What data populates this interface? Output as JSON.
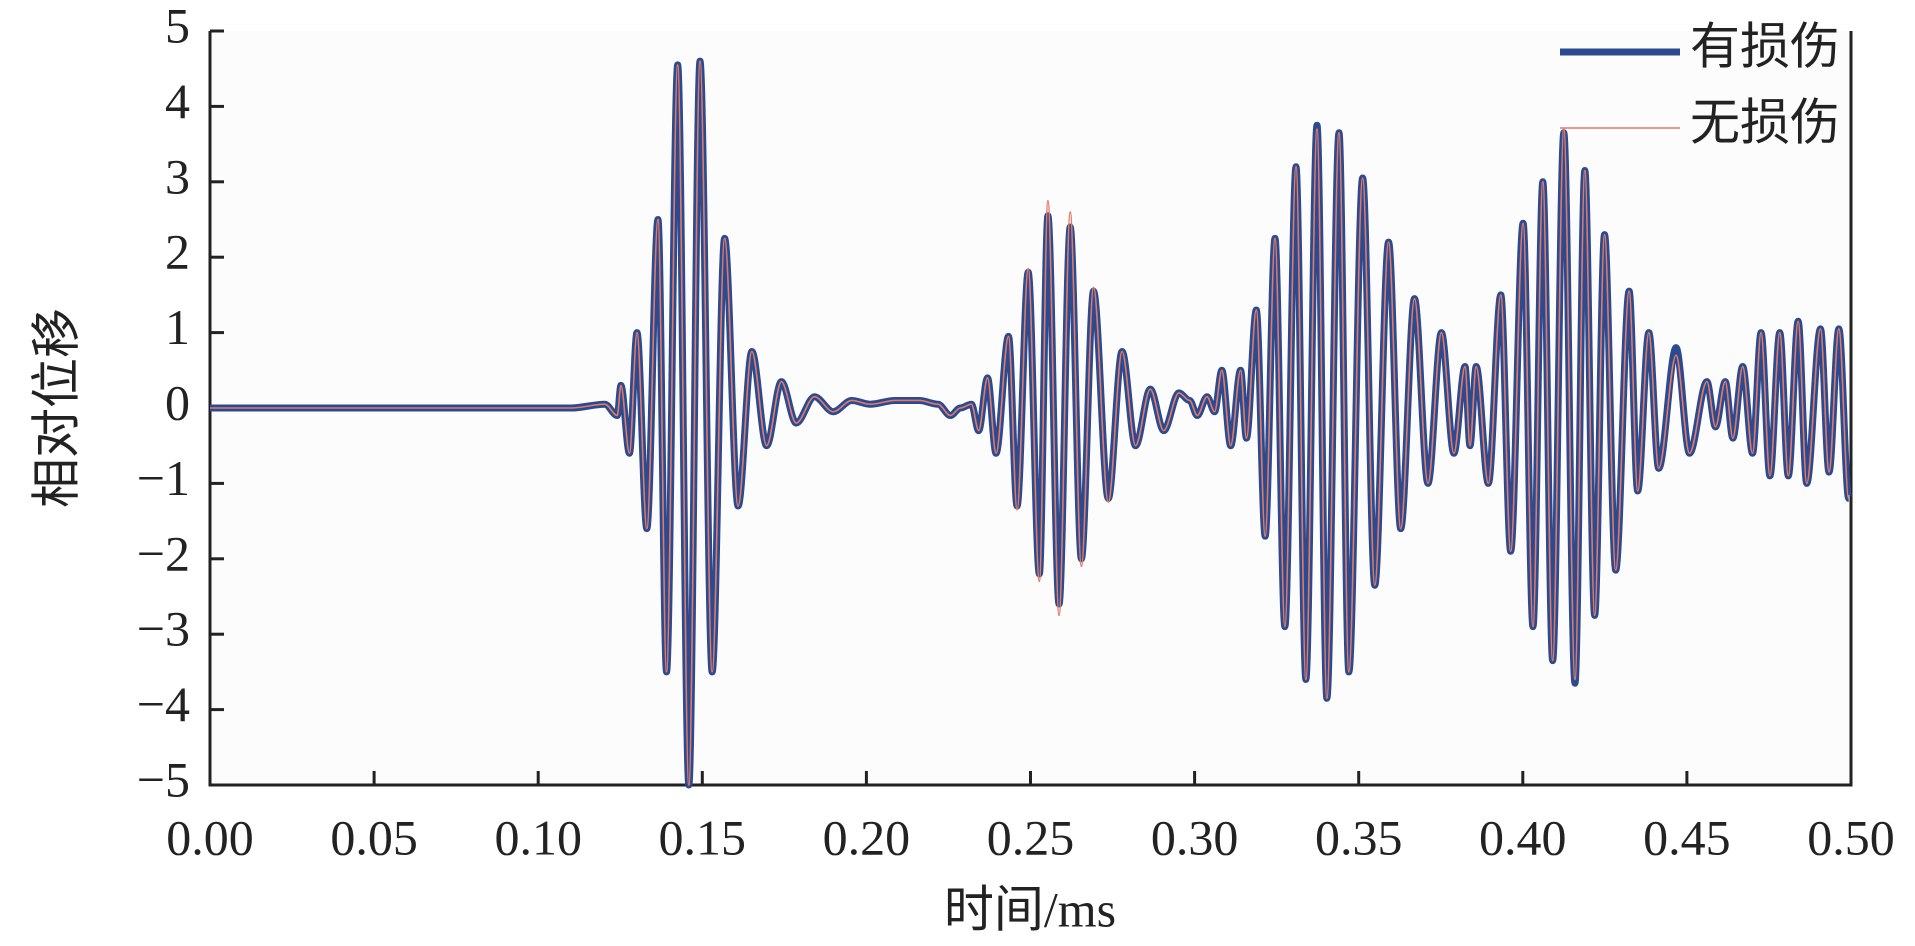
{
  "chart_data": {
    "type": "line",
    "xlabel": "时间/ms",
    "ylabel": "相对位移",
    "x": [
      0,
      0.11,
      0.1203,
      0.1241,
      0.1252,
      0.1278,
      0.1301,
      0.1331,
      0.1365,
      0.1391,
      0.1425,
      0.1459,
      0.1493,
      0.153,
      0.1568,
      0.1609,
      0.1651,
      0.1696,
      0.1741,
      0.1786,
      0.1842,
      0.1899,
      0.1955,
      0.2012,
      0.2087,
      0.2162,
      0.2218,
      0.2256,
      0.2286,
      0.232,
      0.2342,
      0.2369,
      0.2395,
      0.2433,
      0.2459,
      0.2493,
      0.2527,
      0.2553,
      0.2587,
      0.2621,
      0.2655,
      0.2692,
      0.2737,
      0.2779,
      0.282,
      0.2865,
      0.2906,
      0.2952,
      0.2985,
      0.3008,
      0.3038,
      0.3061,
      0.3083,
      0.311,
      0.314,
      0.3158,
      0.3188,
      0.3215,
      0.3245,
      0.3275,
      0.3309,
      0.3339,
      0.3373,
      0.3403,
      0.344,
      0.347,
      0.3512,
      0.3549,
      0.3591,
      0.3628,
      0.367,
      0.3711,
      0.3752,
      0.379,
      0.3824,
      0.3839,
      0.3858,
      0.3895,
      0.3933,
      0.3963,
      0.4001,
      0.4031,
      0.4061,
      0.4091,
      0.4125,
      0.4159,
      0.4189,
      0.4219,
      0.4249,
      0.4283,
      0.4324,
      0.435,
      0.4384,
      0.4414,
      0.4467,
      0.4508,
      0.4561,
      0.4587,
      0.4617,
      0.464,
      0.467,
      0.47,
      0.4726,
      0.4753,
      0.4783,
      0.4809,
      0.4839,
      0.4865,
      0.4907,
      0.4933,
      0.4963,
      0.4993
    ],
    "series": [
      {
        "name": "有损伤",
        "color": "#2c4a8f",
        "values": [
          0,
          0,
          0.05,
          -0.1,
          0.3,
          -0.6,
          1.0,
          -1.6,
          2.5,
          -3.5,
          4.55,
          -5,
          4.6,
          -3.5,
          2.25,
          -1.3,
          0.75,
          -0.5,
          0.35,
          -0.2,
          0.15,
          -0.05,
          0.1,
          0.05,
          0.1,
          0.1,
          0.05,
          -0.1,
          0,
          0.05,
          -0.3,
          0.4,
          -0.6,
          0.95,
          -1.3,
          1.8,
          -2.2,
          2.55,
          -2.6,
          2.4,
          -2.0,
          1.55,
          -1.2,
          0.75,
          -0.5,
          0.25,
          -0.3,
          0.2,
          0.1,
          -0.1,
          0.15,
          -0.05,
          0.5,
          -0.5,
          0.5,
          -0.4,
          1.3,
          -1.7,
          2.25,
          -2.9,
          3.2,
          -3.6,
          3.75,
          -3.85,
          3.65,
          -3.5,
          3.05,
          -2.35,
          2.2,
          -1.6,
          1.45,
          -1.0,
          1.0,
          -0.6,
          0.55,
          -0.5,
          0.55,
          -1.0,
          1.5,
          -1.9,
          2.45,
          -2.9,
          3.0,
          -3.35,
          3.65,
          -3.65,
          3.15,
          -2.75,
          2.3,
          -2.15,
          1.55,
          -1.1,
          1.0,
          -0.8,
          0.8,
          -0.6,
          0.35,
          -0.25,
          0.35,
          -0.4,
          0.55,
          -0.6,
          1.0,
          -0.9,
          1.0,
          -0.9,
          1.15,
          -1.0,
          1.05,
          -0.85,
          1.05,
          -1.2
        ]
      },
      {
        "name": "无损伤",
        "color": "#e07b68",
        "values": [
          0,
          0,
          0.05,
          -0.1,
          0.3,
          -0.6,
          1.0,
          -1.6,
          2.5,
          -3.5,
          4.55,
          -5,
          4.6,
          -3.5,
          2.25,
          -1.3,
          0.75,
          -0.5,
          0.35,
          -0.2,
          0.15,
          -0.05,
          0.1,
          0.05,
          0.1,
          0.1,
          0.05,
          -0.1,
          0,
          0.05,
          -0.3,
          0.4,
          -0.6,
          0.95,
          -1.35,
          1.85,
          -2.3,
          2.75,
          -2.75,
          2.6,
          -2.1,
          1.6,
          -1.25,
          0.75,
          -0.5,
          0.25,
          -0.3,
          0.2,
          0.1,
          -0.1,
          0.15,
          -0.05,
          0.5,
          -0.5,
          0.5,
          -0.4,
          1.3,
          -1.7,
          2.25,
          -2.9,
          3.2,
          -3.6,
          3.7,
          -3.85,
          3.65,
          -3.5,
          3.05,
          -2.35,
          2.2,
          -1.6,
          1.45,
          -1.0,
          1.0,
          -0.6,
          0.55,
          -0.5,
          0.55,
          -1.0,
          1.5,
          -1.9,
          2.45,
          -2.9,
          3.0,
          -3.35,
          3.7,
          -3.6,
          3.15,
          -2.75,
          2.3,
          -2.15,
          1.55,
          -1.1,
          1.0,
          -0.8,
          0.7,
          -0.6,
          0.35,
          -0.25,
          0.35,
          -0.4,
          0.55,
          -0.6,
          1.0,
          -0.9,
          1.0,
          -0.9,
          1.15,
          -1.0,
          1.05,
          -0.85,
          1.05,
          -1.2
        ]
      }
    ],
    "xlim": [
      0,
      0.5
    ],
    "xticks": [
      {
        "value": 0,
        "label": "0.00"
      },
      {
        "value": 0.05,
        "label": "0.05"
      },
      {
        "value": 0.1,
        "label": "0.10"
      },
      {
        "value": 0.15,
        "label": "0.15"
      },
      {
        "value": 0.2,
        "label": "0.20"
      },
      {
        "value": 0.25,
        "label": "0.25"
      },
      {
        "value": 0.3,
        "label": "0.30"
      },
      {
        "value": 0.35,
        "label": "0.35"
      },
      {
        "value": 0.4,
        "label": "0.40"
      },
      {
        "value": 0.45,
        "label": "0.45"
      },
      {
        "value": 0.5,
        "label": "0.50"
      }
    ],
    "ylim": [
      -5,
      5
    ],
    "yticks": [
      {
        "value": -5,
        "label": "−5"
      },
      {
        "value": -4,
        "label": "−4"
      },
      {
        "value": -3,
        "label": "−3"
      },
      {
        "value": -2,
        "label": "−2"
      },
      {
        "value": -1,
        "label": "−1"
      },
      0,
      1,
      2,
      3,
      4,
      5
    ],
    "grid": false,
    "legend": "upper right"
  }
}
